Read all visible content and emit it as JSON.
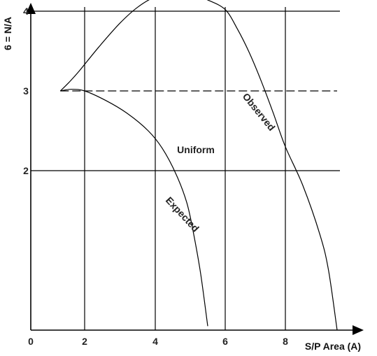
{
  "chart_data": {
    "type": "line",
    "title": "",
    "xlabel": "S/P Area (A)",
    "ylabel": "6 = N/A",
    "xticks": [
      "0",
      "2",
      "4",
      "6",
      "8"
    ],
    "yticks": [
      "2",
      "3",
      "4"
    ],
    "grid": true,
    "series": [
      {
        "name": "Observed",
        "x": [
          1.1,
          1.4,
          1.8,
          2.4,
          3.0,
          3.5,
          4.0,
          4.5,
          5.0,
          5.5,
          6.0,
          6.4,
          6.8,
          7.2,
          7.6,
          8.0,
          8.4,
          8.8,
          9.0,
          9.2
        ],
        "y": [
          3.0,
          3.1,
          3.25,
          3.55,
          3.85,
          4.05,
          4.18,
          4.23,
          4.22,
          4.14,
          4.02,
          3.78,
          3.48,
          3.12,
          2.72,
          2.3,
          1.82,
          1.2,
          0.75,
          0.0
        ]
      },
      {
        "name": "Expected",
        "x": [
          1.1,
          1.5,
          2.0,
          2.6,
          3.2,
          3.8,
          4.2,
          4.6,
          4.9,
          5.1,
          5.3,
          5.5
        ],
        "y": [
          3.0,
          3.02,
          3.0,
          2.88,
          2.72,
          2.5,
          2.28,
          1.95,
          1.6,
          1.2,
          0.7,
          0.05
        ]
      },
      {
        "name": "Uniform",
        "x": [
          1.1,
          9.2
        ],
        "y": [
          3.0,
          3.0
        ]
      }
    ]
  }
}
